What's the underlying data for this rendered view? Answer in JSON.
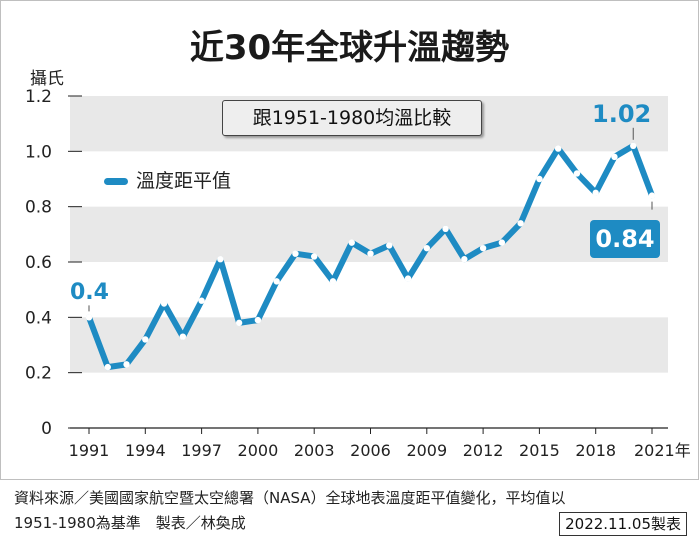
{
  "title": "近30年全球升溫趨勢",
  "unit_label": "攝氏",
  "baseline_note": "跟1951-1980均溫比較",
  "legend_label": "溫度距平值",
  "annotations": {
    "start": "0.4",
    "peak": "1.02",
    "end": "0.84"
  },
  "footer": {
    "source": "資料來源／美國國家航空暨太空總署（NASA）全球地表溫度距平值變化，平均值以",
    "source_line2": "1951-1980為基準　製表／林奐成",
    "date": "2022.11.05製表"
  },
  "colors": {
    "line": "#1e8bc3",
    "band": "#e8e8e8",
    "annotation_box": "#1e8bc3"
  },
  "chart_data": {
    "type": "line",
    "title": "近30年全球升溫趨勢",
    "ylabel": "攝氏",
    "ylim": [
      0,
      1.2
    ],
    "y_ticks": [
      "0",
      "0.2",
      "0.4",
      "0.6",
      "0.8",
      "1.0",
      "1.2"
    ],
    "x_tick_labels": [
      "1991",
      "1994",
      "1997",
      "2000",
      "2003",
      "2006",
      "2009",
      "2012",
      "2015",
      "2018",
      "2021年"
    ],
    "x_tick_years": [
      1991,
      1994,
      1997,
      2000,
      2003,
      2006,
      2009,
      2012,
      2015,
      2018,
      2021
    ],
    "xlim": [
      1991,
      2021
    ],
    "legend_position": "top-left",
    "series": [
      {
        "name": "溫度距平值",
        "x": [
          1991,
          1992,
          1993,
          1994,
          1995,
          1996,
          1997,
          1998,
          1999,
          2000,
          2001,
          2002,
          2003,
          2004,
          2005,
          2006,
          2007,
          2008,
          2009,
          2010,
          2011,
          2012,
          2013,
          2014,
          2015,
          2016,
          2017,
          2018,
          2019,
          2020,
          2021
        ],
        "y": [
          0.4,
          0.22,
          0.23,
          0.32,
          0.45,
          0.33,
          0.46,
          0.61,
          0.38,
          0.39,
          0.53,
          0.63,
          0.62,
          0.53,
          0.67,
          0.63,
          0.66,
          0.54,
          0.65,
          0.72,
          0.61,
          0.65,
          0.67,
          0.74,
          0.9,
          1.01,
          0.92,
          0.85,
          0.98,
          1.02,
          0.84
        ]
      }
    ]
  }
}
